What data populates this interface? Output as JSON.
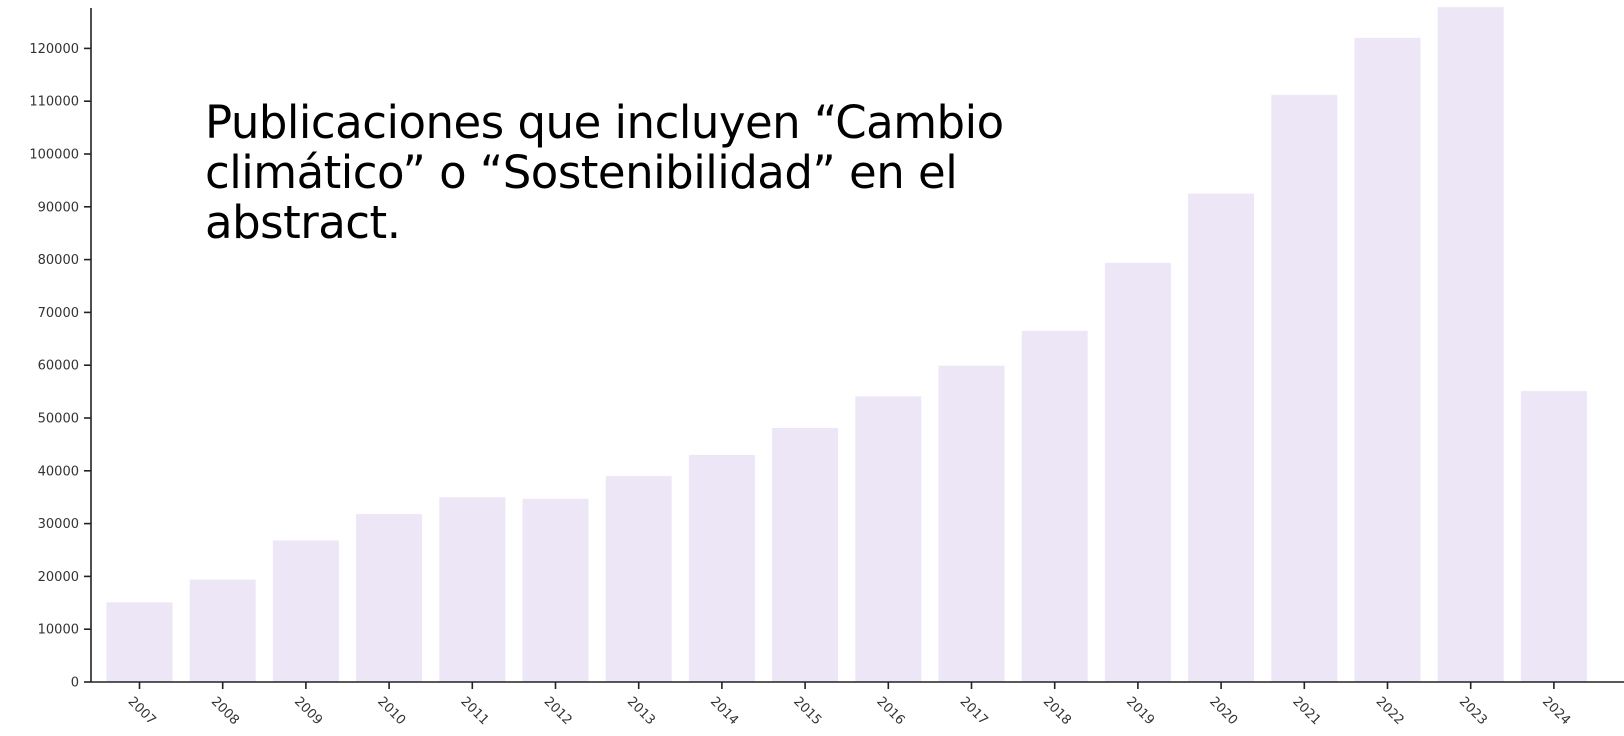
{
  "chart_data": {
    "type": "bar",
    "title": "Publicaciones que incluyen “Cambio climático” o “Sostenibilidad” en el abstract.",
    "xlabel": "",
    "ylabel": "",
    "categories": [
      "2007",
      "2008",
      "2009",
      "2010",
      "2011",
      "2012",
      "2013",
      "2014",
      "2015",
      "2016",
      "2017",
      "2018",
      "2019",
      "2020",
      "2021",
      "2022",
      "2023",
      "2024"
    ],
    "values": [
      15100,
      19400,
      26800,
      31800,
      35000,
      34700,
      39000,
      43000,
      48100,
      54100,
      59900,
      66500,
      79400,
      92500,
      111200,
      122000,
      127800,
      55100
    ],
    "ylim": [
      0,
      130000
    ],
    "yticks": [
      "0",
      "10000",
      "20000",
      "30000",
      "40000",
      "50000",
      "60000",
      "70000",
      "80000",
      "90000",
      "100000",
      "110000",
      "120000"
    ],
    "bar_color": "#ede6f7",
    "axis_color": "#222222",
    "grid": false,
    "legend": "none"
  }
}
